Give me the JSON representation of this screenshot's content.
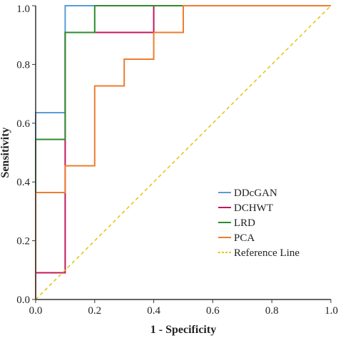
{
  "chart_data": {
    "type": "line",
    "title": "",
    "xlabel": "1 - Specificity",
    "ylabel": "Sensitivity",
    "xlim": [
      0,
      1
    ],
    "ylim": [
      0,
      1
    ],
    "xticks": [
      "0.0",
      "0.2",
      "0.4",
      "0.6",
      "0.8",
      "1.0"
    ],
    "yticks": [
      "0.0",
      "0.2",
      "0.4",
      "0.6",
      "0.8",
      "1.0"
    ],
    "grid": false,
    "legend_position": "bottom-right",
    "series": [
      {
        "name": "DDcGAN",
        "color": "#5b9bd5",
        "points": [
          [
            0,
            0
          ],
          [
            0,
            0.636
          ],
          [
            0.1,
            0.636
          ],
          [
            0.1,
            1.0
          ],
          [
            1.0,
            1.0
          ]
        ]
      },
      {
        "name": "DCHWT",
        "color": "#c0185c",
        "points": [
          [
            0,
            0
          ],
          [
            0,
            0.091
          ],
          [
            0.1,
            0.091
          ],
          [
            0.1,
            0.909
          ],
          [
            0.4,
            0.909
          ],
          [
            0.4,
            1.0
          ],
          [
            1.0,
            1.0
          ]
        ]
      },
      {
        "name": "LRD",
        "color": "#2e8b2e",
        "points": [
          [
            0,
            0
          ],
          [
            0,
            0.545
          ],
          [
            0.1,
            0.545
          ],
          [
            0.1,
            0.909
          ],
          [
            0.2,
            0.909
          ],
          [
            0.2,
            1.0
          ],
          [
            1.0,
            1.0
          ]
        ]
      },
      {
        "name": "PCA",
        "color": "#ed7d31",
        "points": [
          [
            0,
            0
          ],
          [
            0,
            0.364
          ],
          [
            0.1,
            0.364
          ],
          [
            0.1,
            0.455
          ],
          [
            0.2,
            0.455
          ],
          [
            0.2,
            0.727
          ],
          [
            0.3,
            0.727
          ],
          [
            0.3,
            0.818
          ],
          [
            0.4,
            0.818
          ],
          [
            0.4,
            0.909
          ],
          [
            0.5,
            0.909
          ],
          [
            0.5,
            1.0
          ],
          [
            1.0,
            1.0
          ]
        ]
      },
      {
        "name": "Reference Line",
        "color": "#e6c619",
        "dashed": true,
        "points": [
          [
            0,
            0
          ],
          [
            1,
            1
          ]
        ]
      }
    ]
  }
}
